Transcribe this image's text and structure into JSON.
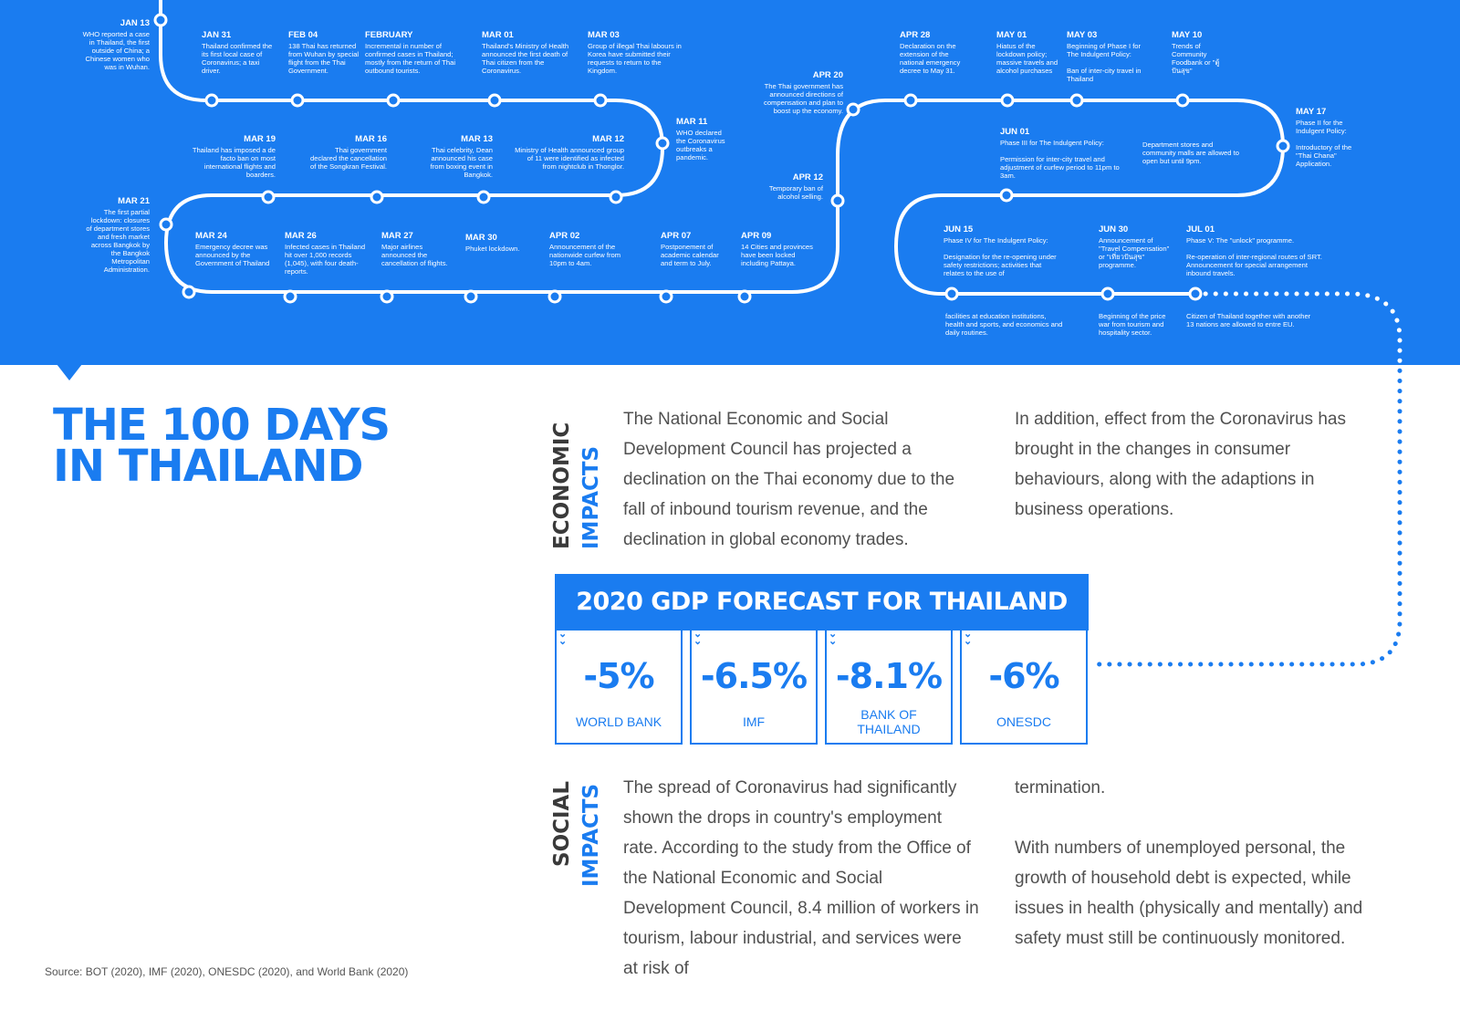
{
  "title": {
    "line1": "THE 100 DAYS",
    "line2": "IN THAILAND"
  },
  "colors": {
    "brand_blue": "#1a7cf0",
    "text_gray": "#505050",
    "heading_dark": "#3a3a3a",
    "white": "#ffffff"
  },
  "timeline": {
    "jan13": {
      "date": "JAN 13",
      "text": "WHO reported a case in Thailand, the first outside of China; a Chinese women who was in Wuhan."
    },
    "jan31": {
      "date": "JAN 31",
      "text": "Thailand confirmed the its first local case of Coronavirus; a taxi driver."
    },
    "feb04": {
      "date": "FEB 04",
      "text": "138 Thai has returned from Wuhan by special flight from the Thai Government."
    },
    "february": {
      "date": "FEBRUARY",
      "text": "Incremental in number of confirmed cases in Thailand; mostly from the return of Thai outbound tourists."
    },
    "mar01": {
      "date": "MAR 01",
      "text": "Thailand's Ministry of Health announced the first death of Thai citizen from the Coronavirus."
    },
    "mar03": {
      "date": "MAR 03",
      "text": "Group of illegal Thai labours in Korea have submitted their requests to return to the Kingdom."
    },
    "mar11": {
      "date": "MAR 11",
      "text": "WHO declared the Coronavirus outbreaks a pandemic."
    },
    "mar12": {
      "date": "MAR 12",
      "text": "Ministry of Health announced group of 11 were identified as infected from nightclub in Thonglor."
    },
    "mar13": {
      "date": "MAR 13",
      "text": "Thai celebrity, Dean announced his case from boxing event in Bangkok."
    },
    "mar16": {
      "date": "MAR 16",
      "text": "Thai government declared the cancellation of the Songkran Festival."
    },
    "mar19": {
      "date": "MAR 19",
      "text": "Thailand has imposed a de facto ban on most international flights and boarders."
    },
    "mar21": {
      "date": "MAR 21",
      "text": "The first partial lockdown: closures of department stores and fresh market across Bangkok by the Bangkok Metropolitan Administration."
    },
    "mar24": {
      "date": "MAR 24",
      "text": "Emergency decree was announced by the Government of Thailand"
    },
    "mar26": {
      "date": "MAR 26",
      "text": "Infected cases in Thailand hit over 1,000 records (1,045), with four death-reports."
    },
    "mar27": {
      "date": "MAR 27",
      "text": "Major airlines announced the cancellation of flights."
    },
    "mar30": {
      "date": "MAR 30",
      "text": "Phuket lockdown."
    },
    "apr02": {
      "date": "APR 02",
      "text": "Announcement of the nationwide curfew from 10pm to 4am."
    },
    "apr07": {
      "date": "APR 07",
      "text": "Postponement of academic calendar and term to July."
    },
    "apr09": {
      "date": "APR 09",
      "text": "14 Cities and provinces have been locked including Pattaya."
    },
    "apr12": {
      "date": "APR 12",
      "text": "Temporary ban of alcohol selling."
    },
    "apr20": {
      "date": "APR 20",
      "text": "The Thai government has announced directions of compensation and plan to boost up the economy."
    },
    "apr28": {
      "date": "APR 28",
      "text": "Declaration on the extension of the national emergency decree to May 31."
    },
    "may01": {
      "date": "MAY 01",
      "text": "Hiatus of the lockdown policy; massive travels and alcohol purchases"
    },
    "may03": {
      "date": "MAY 03",
      "text": "Beginning of Phase I for The Indulgent Policy:",
      "text2": "Ban of inter-city travel in Thailand"
    },
    "may10": {
      "date": "MAY 10",
      "text": "Trends of Community Foodbank or \"ตู้ปันสุข\""
    },
    "may17": {
      "date": "MAY 17",
      "text": "Phase II for the Indulgent Policy:",
      "text2": "Introductory of the \"Thai Chana\" Application."
    },
    "jun01": {
      "date": "JUN 01",
      "text": "Phase III for The Indulgent Policy:",
      "text2": "Permission for inter-city travel and adjustment of curfew period to 11pm to 3am.",
      "side": "Department stores and community malls are allowed to open but until 9pm."
    },
    "jun15": {
      "date": "JUN 15",
      "text": "Phase IV for The Indulgent Policy:",
      "text2": "Designation for the re-opening under safety restrictions; activities that relates to the use of",
      "below": "facilities at education institutions, health and sports, and economics and daily routines."
    },
    "jun30": {
      "date": "JUN 30",
      "text": "Announcement of \"Travel Compensation\" or \"เที่ยวปันสุข\" programme.",
      "below": "Beginning of the price war from tourism and hospitality sector."
    },
    "jul01": {
      "date": "JUL 01",
      "text": "Phase V: The \"unlock\" programme.",
      "text2": "Re-operation of inter-regional routes of SRT. Announcement for special arrangement inbound travels.",
      "below": "Citizen of Thailand together with another 13 nations are allowed to entre EU."
    }
  },
  "economic": {
    "heading_line1": "ECONOMIC",
    "heading_line2": "IMPACTS",
    "para1": "The National Economic and Social Development Council has projected a declination on the Thai economy due to the fall of inbound tourism revenue, and the declination in global economy trades.",
    "para2": "In addition, effect from the Coronavirus has brought in the changes in consumer behaviours, along with the adaptions in business operations."
  },
  "gdp": {
    "title": "2020 GDP FORECAST FOR THAILAND",
    "chevron_icon": "chevron-down-double-icon",
    "forecasts": [
      {
        "value": "-5%",
        "source": "WORLD BANK"
      },
      {
        "value": "-6.5%",
        "source": "IMF"
      },
      {
        "value": "-8.1%",
        "source": "BANK OF THAILAND"
      },
      {
        "value": "-6%",
        "source": "ONESDC"
      }
    ]
  },
  "social": {
    "heading_line1": "SOCIAL",
    "heading_line2": "IMPACTS",
    "para1": "The spread of Coronavirus had significantly shown the drops in country's employment rate. According to the study from the Office of the National Economic and Social Development Council, 8.4 million of workers in tourism, labour industrial, and services were at risk of",
    "para2a": "termination.",
    "para2b": "With numbers of unemployed personal, the growth of household debt is expected, while issues in health (physically and mentally) and safety must still be continuously monitored."
  },
  "source_note": "Source: BOT (2020), IMF (2020), ONESDC (2020), and World Bank (2020)"
}
